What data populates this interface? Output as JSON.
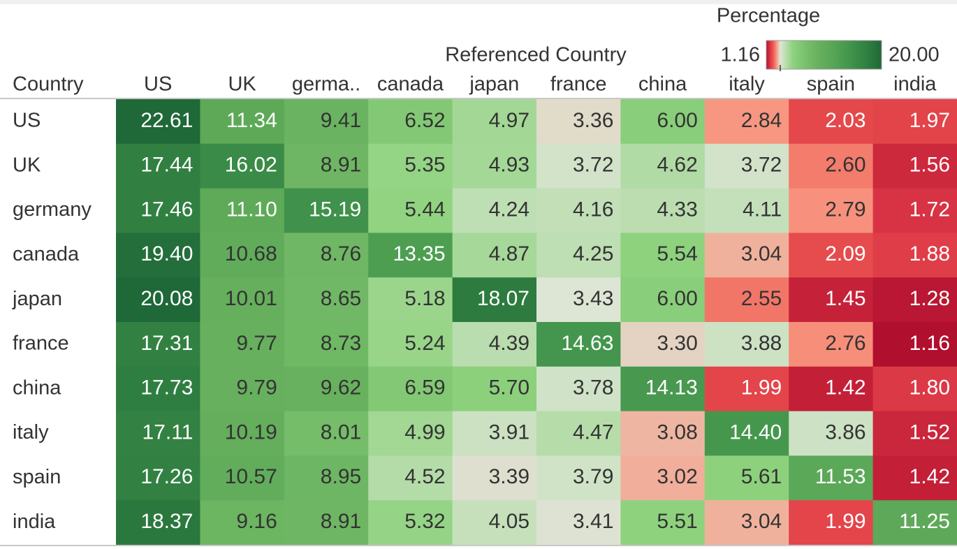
{
  "chart_data": {
    "type": "heatmap",
    "title": "Referenced Country",
    "y_label": "Country",
    "x_categories": [
      "US",
      "UK",
      "germa..",
      "canada",
      "japan",
      "france",
      "china",
      "italy",
      "spain",
      "india"
    ],
    "y_categories": [
      "US",
      "UK",
      "germany",
      "canada",
      "japan",
      "france",
      "china",
      "italy",
      "spain",
      "india"
    ],
    "values": [
      [
        22.61,
        11.34,
        9.41,
        6.52,
        4.97,
        3.36,
        6.0,
        2.84,
        2.03,
        1.97
      ],
      [
        17.44,
        16.02,
        8.91,
        5.35,
        4.93,
        3.72,
        4.62,
        3.72,
        2.6,
        1.56
      ],
      [
        17.46,
        11.1,
        15.19,
        5.44,
        4.24,
        4.16,
        4.33,
        4.11,
        2.79,
        1.72
      ],
      [
        19.4,
        10.68,
        8.76,
        13.35,
        4.87,
        4.25,
        5.54,
        3.04,
        2.09,
        1.88
      ],
      [
        20.08,
        10.01,
        8.65,
        5.18,
        18.07,
        3.43,
        6.0,
        2.55,
        1.45,
        1.28
      ],
      [
        17.31,
        9.77,
        8.73,
        5.24,
        4.39,
        14.63,
        3.3,
        3.88,
        2.76,
        1.16
      ],
      [
        17.73,
        9.79,
        9.62,
        6.59,
        5.7,
        3.78,
        14.13,
        1.99,
        1.42,
        1.8
      ],
      [
        17.11,
        10.19,
        8.01,
        4.99,
        3.91,
        4.47,
        3.08,
        14.4,
        3.86,
        1.52
      ],
      [
        17.26,
        10.57,
        8.95,
        4.52,
        3.39,
        3.79,
        3.02,
        5.61,
        11.53,
        1.42
      ],
      [
        18.37,
        9.16,
        8.91,
        5.32,
        4.05,
        3.41,
        5.51,
        3.04,
        1.99,
        11.25
      ]
    ],
    "value_labels": [
      [
        "22.61",
        "11.34",
        "9.41",
        "6.52",
        "4.97",
        "3.36",
        "6.00",
        "2.84",
        "2.03",
        "1.97"
      ],
      [
        "17.44",
        "16.02",
        "8.91",
        "5.35",
        "4.93",
        "3.72",
        "4.62",
        "3.72",
        "2.60",
        "1.56"
      ],
      [
        "17.46",
        "11.10",
        "15.19",
        "5.44",
        "4.24",
        "4.16",
        "4.33",
        "4.11",
        "2.79",
        "1.72"
      ],
      [
        "19.40",
        "10.68",
        "8.76",
        "13.35",
        "4.87",
        "4.25",
        "5.54",
        "3.04",
        "2.09",
        "1.88"
      ],
      [
        "20.08",
        "10.01",
        "8.65",
        "5.18",
        "18.07",
        "3.43",
        "6.00",
        "2.55",
        "1.45",
        "1.28"
      ],
      [
        "17.31",
        "9.77",
        "8.73",
        "5.24",
        "4.39",
        "14.63",
        "3.30",
        "3.88",
        "2.76",
        "1.16"
      ],
      [
        "17.73",
        "9.79",
        "9.62",
        "6.59",
        "5.70",
        "3.78",
        "14.13",
        "1.99",
        "1.42",
        "1.80"
      ],
      [
        "17.11",
        "10.19",
        "8.01",
        "4.99",
        "3.91",
        "4.47",
        "3.08",
        "14.40",
        "3.86",
        "1.52"
      ],
      [
        "17.26",
        "10.57",
        "8.95",
        "4.52",
        "3.39",
        "3.79",
        "3.02",
        "5.61",
        "11.53",
        "1.42"
      ],
      [
        "18.37",
        "9.16",
        "8.91",
        "5.32",
        "4.05",
        "3.41",
        "5.51",
        "3.04",
        "1.99",
        "11.25"
      ]
    ],
    "legend_title": "Percentage",
    "clim": [
      1.16,
      20
    ],
    "cticks": [
      1.16,
      {
        "value": 20,
        "label": "20.00"
      }
    ],
    "palette_center": 3.44,
    "palette_low": [
      "#b10f2e",
      "#d93444",
      "#ee5a52",
      "#f89a84",
      "#dde6d6"
    ],
    "palette_high": [
      "#dde6d6",
      "#8ed27e",
      "#78c06c",
      "#68b15e",
      "#5aa757",
      "#4a9b50",
      "#3b8c48",
      "#2e7c40",
      "#1f6838"
    ]
  }
}
